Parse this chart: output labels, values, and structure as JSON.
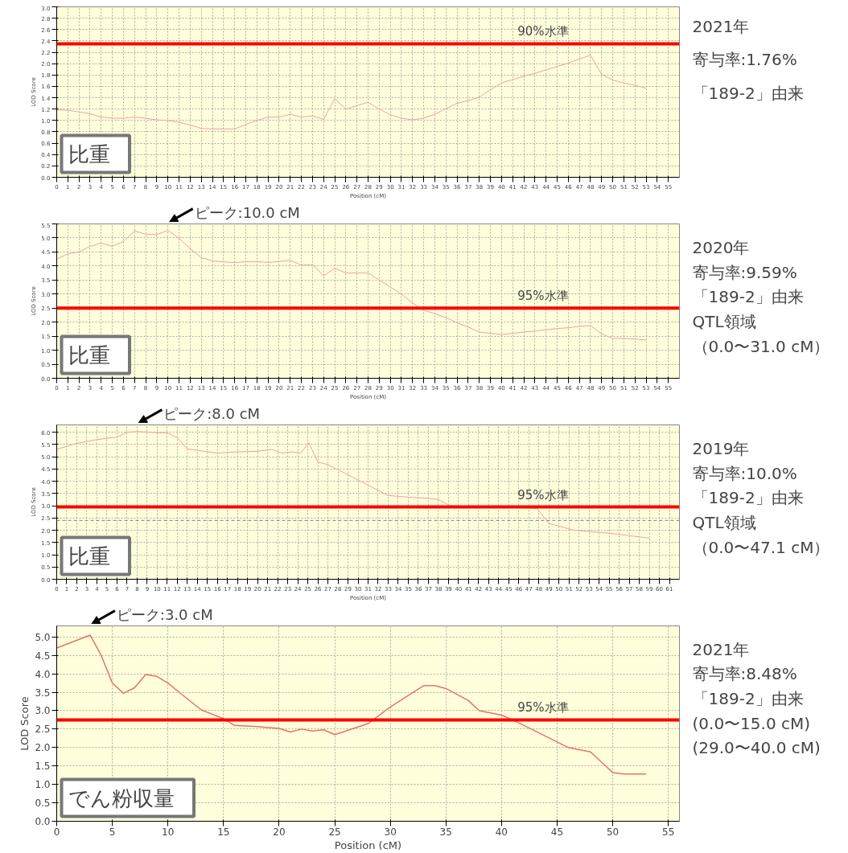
{
  "chart_data": [
    {
      "type": "line",
      "title": "比重",
      "xlabel": "Position (cM)",
      "ylabel": "LOD Score",
      "x": [
        0,
        1,
        2,
        3,
        4,
        5,
        6,
        7,
        8,
        9,
        10,
        11,
        12,
        13,
        14,
        15,
        16,
        17,
        18,
        19,
        20,
        21,
        22,
        23,
        24,
        25,
        26,
        27,
        28,
        29,
        30,
        31,
        32,
        33,
        34,
        35,
        36,
        37,
        38,
        39,
        40,
        41,
        42,
        43,
        44,
        45,
        46,
        47,
        48,
        49,
        50,
        51,
        52,
        53
      ],
      "series": [
        {
          "color": "#f0a0a0",
          "values": [
            1.19,
            1.18,
            1.15,
            1.12,
            1.06,
            1.04,
            1.04,
            1.06,
            1.04,
            1.01,
            1.0,
            0.97,
            0.92,
            0.86,
            0.85,
            0.85,
            0.85,
            0.93,
            1.0,
            1.06,
            1.06,
            1.11,
            1.06,
            1.08,
            1.02,
            1.38,
            1.2,
            1.26,
            1.32,
            1.2,
            1.1,
            1.04,
            1.01,
            1.04,
            1.11,
            1.21,
            1.3,
            1.35,
            1.41,
            1.54,
            1.66,
            1.72,
            1.78,
            1.83,
            1.89,
            1.95,
            2.01,
            2.08,
            2.15,
            1.81,
            1.71,
            1.66,
            1.62,
            1.57
          ]
        }
      ],
      "xlim": [
        0,
        56
      ],
      "xticks": [
        0,
        1,
        2,
        3,
        4,
        5,
        6,
        7,
        8,
        9,
        10,
        11,
        12,
        13,
        14,
        15,
        16,
        17,
        18,
        19,
        20,
        21,
        22,
        23,
        24,
        25,
        26,
        27,
        28,
        29,
        30,
        31,
        32,
        33,
        34,
        35,
        36,
        37,
        38,
        39,
        40,
        41,
        42,
        43,
        44,
        45,
        46,
        47,
        48,
        49,
        50,
        51,
        52,
        53,
        54,
        55
      ],
      "ylim": [
        0,
        3.0
      ],
      "yticks": [
        {
          "value": 0,
          "label": "0.0"
        },
        {
          "value": 0.2,
          "label": "0.2"
        },
        {
          "value": 0.4,
          "label": "0.4"
        },
        {
          "value": 0.6,
          "label": "0.6"
        },
        {
          "value": 0.8,
          "label": "0.8"
        },
        {
          "value": 1.0,
          "label": "1.0"
        },
        {
          "value": 1.2,
          "label": "1.2"
        },
        {
          "value": 1.4,
          "label": "1.4"
        },
        {
          "value": 1.6,
          "label": "1.6"
        },
        {
          "value": 1.8,
          "label": "1.8"
        },
        {
          "value": 2.0,
          "label": "2.0"
        },
        {
          "value": 2.2,
          "label": "2.2"
        },
        {
          "value": 2.4,
          "label": "2.4"
        },
        {
          "value": 2.6,
          "label": "2.6"
        },
        {
          "value": 2.8,
          "label": "2.8"
        },
        {
          "value": 3.0,
          "label": "3.0"
        }
      ],
      "grid": true,
      "marker": "none",
      "line_style": "solid",
      "ref_lines": [
        {
          "axis": "y",
          "value": 2.35,
          "label": "90%水準",
          "color": "#ff0000",
          "line_style": "solid"
        }
      ],
      "annotations": [
        "2021年",
        "寄与率:1.76%",
        "「189-2」由来"
      ]
    },
    {
      "type": "line",
      "title": "比重",
      "xlabel": "Position (cM)",
      "ylabel": "LOD Score",
      "x": [
        0,
        1,
        2,
        3,
        4,
        5,
        6,
        7,
        8,
        9,
        10,
        11,
        12,
        13,
        14,
        15,
        16,
        17,
        18,
        19,
        20,
        21,
        22,
        23,
        24,
        25,
        26,
        27,
        28,
        29,
        30,
        31,
        32,
        33,
        34,
        35,
        36,
        37,
        38,
        39,
        40,
        41,
        42,
        43,
        44,
        45,
        46,
        47,
        48,
        49,
        50,
        51,
        52,
        53
      ],
      "series": [
        {
          "color": "#f0a0a0",
          "values": [
            4.25,
            4.43,
            4.5,
            4.7,
            4.82,
            4.7,
            4.88,
            5.25,
            5.13,
            5.12,
            5.27,
            4.98,
            4.62,
            4.3,
            4.18,
            4.15,
            4.12,
            4.15,
            4.15,
            4.13,
            4.16,
            4.2,
            4.03,
            4.05,
            3.65,
            3.92,
            3.75,
            3.75,
            3.75,
            3.5,
            3.25,
            3.0,
            2.68,
            2.42,
            2.3,
            2.16,
            1.98,
            1.82,
            1.65,
            1.6,
            1.56,
            1.6,
            1.65,
            1.68,
            1.73,
            1.77,
            1.8,
            1.85,
            1.88,
            1.58,
            1.42,
            1.42,
            1.4,
            1.36
          ]
        }
      ],
      "xlim": [
        0,
        56
      ],
      "xticks": [
        0,
        1,
        2,
        3,
        4,
        5,
        6,
        7,
        8,
        9,
        10,
        11,
        12,
        13,
        14,
        15,
        16,
        17,
        18,
        19,
        20,
        21,
        22,
        23,
        24,
        25,
        26,
        27,
        28,
        29,
        30,
        31,
        32,
        33,
        34,
        35,
        36,
        37,
        38,
        39,
        40,
        41,
        42,
        43,
        44,
        45,
        46,
        47,
        48,
        49,
        50,
        51,
        52,
        53,
        54,
        55
      ],
      "ylim": [
        0,
        5.5
      ],
      "yticks": [
        {
          "value": 0,
          "label": "0.0"
        },
        {
          "value": 0.5,
          "label": "0.5"
        },
        {
          "value": 1.0,
          "label": "1.0"
        },
        {
          "value": 1.5,
          "label": "1.5"
        },
        {
          "value": 2.0,
          "label": "2.0"
        },
        {
          "value": 2.5,
          "label": "2.5"
        },
        {
          "value": 3.0,
          "label": "3.0"
        },
        {
          "value": 3.5,
          "label": "3.5"
        },
        {
          "value": 4.0,
          "label": "4.0"
        },
        {
          "value": 4.5,
          "label": "4.5"
        },
        {
          "value": 5.0,
          "label": "5.0"
        },
        {
          "value": 5.5,
          "label": "5.5"
        }
      ],
      "grid": true,
      "marker": "none",
      "line_style": "solid",
      "ref_lines": [
        {
          "axis": "y",
          "value": 2.5,
          "label": "95%水準",
          "color": "#ff0000",
          "line_style": "solid"
        }
      ],
      "subtitle": "ピーク:10.0 cM",
      "annotations": [
        "2020年",
        "寄与率:9.59%",
        "「189-2」由来",
        "QTL領域",
        "（0.0〜31.0 cM）"
      ]
    },
    {
      "type": "line",
      "title": "比重",
      "xlabel": "Position (cM)",
      "ylabel": "LOD Score",
      "x": [
        0,
        2,
        4,
        6,
        7,
        8,
        10,
        11,
        12,
        13,
        16,
        18,
        20,
        21.4,
        22.4,
        23.4,
        24.3,
        25.1,
        26,
        27,
        33,
        35,
        37,
        38,
        39.2,
        47.8,
        49,
        51.5,
        55,
        59
      ],
      "series": [
        {
          "color": "#f0a0a0",
          "values": [
            5.3,
            5.55,
            5.7,
            5.8,
            6.0,
            6.03,
            5.98,
            5.98,
            5.78,
            5.32,
            5.15,
            5.2,
            5.22,
            5.3,
            5.15,
            5.2,
            5.15,
            5.57,
            4.78,
            4.68,
            3.42,
            3.35,
            3.3,
            3.25,
            3.0,
            2.9,
            2.28,
            2.0,
            1.88,
            1.68
          ]
        }
      ],
      "xlim": [
        0,
        62
      ],
      "xticks": [
        0,
        1,
        2,
        3,
        4,
        5,
        6,
        7,
        8,
        9,
        10,
        11,
        12,
        13,
        14,
        15,
        16,
        17,
        18,
        19,
        20,
        21,
        22,
        23,
        24,
        25,
        26,
        27,
        28,
        29,
        30,
        31,
        32,
        33,
        34,
        35,
        36,
        37,
        38,
        39,
        40,
        41,
        42,
        43,
        44,
        45,
        46,
        47,
        48,
        49,
        50,
        51,
        52,
        53,
        54,
        55,
        56,
        57,
        58,
        59,
        60,
        61
      ],
      "ylim": [
        0,
        6.3
      ],
      "yticks": [
        {
          "value": 0,
          "label": "0.0"
        },
        {
          "value": 0.5,
          "label": "0.5"
        },
        {
          "value": 1.0,
          "label": "1.0"
        },
        {
          "value": 1.5,
          "label": "1.5"
        },
        {
          "value": 2.0,
          "label": "2.0"
        },
        {
          "value": 2.5,
          "label": "2.5"
        },
        {
          "value": 3.0,
          "label": "3.0"
        },
        {
          "value": 3.5,
          "label": "3.5"
        },
        {
          "value": 4.0,
          "label": "4.0"
        },
        {
          "value": 4.5,
          "label": "4.5"
        },
        {
          "value": 5.0,
          "label": "5.0"
        },
        {
          "value": 5.5,
          "label": "5.5"
        },
        {
          "value": 6.0,
          "label": "6.0"
        }
      ],
      "grid": true,
      "marker": "none",
      "line_style": "solid",
      "ref_lines": [
        {
          "axis": "y",
          "value": 2.95,
          "label": "95%水準",
          "color": "#ff0000",
          "line_style": "solid"
        },
        {
          "axis": "y",
          "value": 2.4,
          "label": null,
          "color": "#808080",
          "line_style": "dashed"
        }
      ],
      "subtitle": "ピーク:8.0 cM",
      "annotations": [
        "2019年",
        "寄与率:10.0%",
        "「189-2」由来",
        "QTL領域",
        "（0.0〜47.1 cM）"
      ]
    },
    {
      "type": "line",
      "title": "でん粉収量",
      "xlabel": "Position (cM)",
      "ylabel": "LOD Score",
      "x": [
        0,
        3,
        4,
        5,
        6,
        7,
        8,
        9,
        10,
        11,
        13,
        15,
        16,
        18,
        20,
        21,
        22,
        23,
        24,
        25,
        26,
        28,
        30,
        33,
        34,
        35,
        37,
        38,
        40,
        41,
        43,
        45,
        46,
        48,
        50,
        51,
        53
      ],
      "series": [
        {
          "color": "#e87070",
          "values": [
            4.7,
            5.05,
            4.5,
            3.75,
            3.47,
            3.62,
            3.98,
            3.93,
            3.75,
            3.5,
            3.02,
            2.78,
            2.6,
            2.57,
            2.52,
            2.42,
            2.5,
            2.45,
            2.48,
            2.35,
            2.45,
            2.65,
            3.1,
            3.68,
            3.68,
            3.6,
            3.28,
            3.0,
            2.88,
            2.75,
            2.45,
            2.15,
            2.0,
            1.88,
            1.32,
            1.28,
            1.28
          ]
        }
      ],
      "xlim": [
        0,
        56
      ],
      "xticks": [
        0,
        5,
        10,
        15,
        20,
        25,
        30,
        35,
        40,
        45,
        50,
        55
      ],
      "ylim": [
        0,
        5.3
      ],
      "yticks": [
        {
          "value": 0,
          "label": "0.0"
        },
        {
          "value": 0.5,
          "label": "0.5"
        },
        {
          "value": 1.0,
          "label": "1.0"
        },
        {
          "value": 1.5,
          "label": "1.5"
        },
        {
          "value": 2.0,
          "label": "2.0"
        },
        {
          "value": 2.5,
          "label": "2.5"
        },
        {
          "value": 3.0,
          "label": "3.0"
        },
        {
          "value": 3.5,
          "label": "3.5"
        },
        {
          "value": 4.0,
          "label": "4.0"
        },
        {
          "value": 4.5,
          "label": "4.5"
        },
        {
          "value": 5.0,
          "label": "5.0"
        }
      ],
      "grid": true,
      "marker": "none",
      "line_style": "solid",
      "ref_lines": [
        {
          "axis": "y",
          "value": 2.75,
          "label": "95%水準",
          "color": "#ff0000",
          "line_style": "solid"
        }
      ],
      "subtitle": "ピーク:3.0 cM",
      "annotations": [
        "2021年",
        "寄与率:8.48%",
        "「189-2」由来",
        "(0.0〜15.0 cM)",
        "(29.0〜40.0 cM)"
      ]
    }
  ]
}
